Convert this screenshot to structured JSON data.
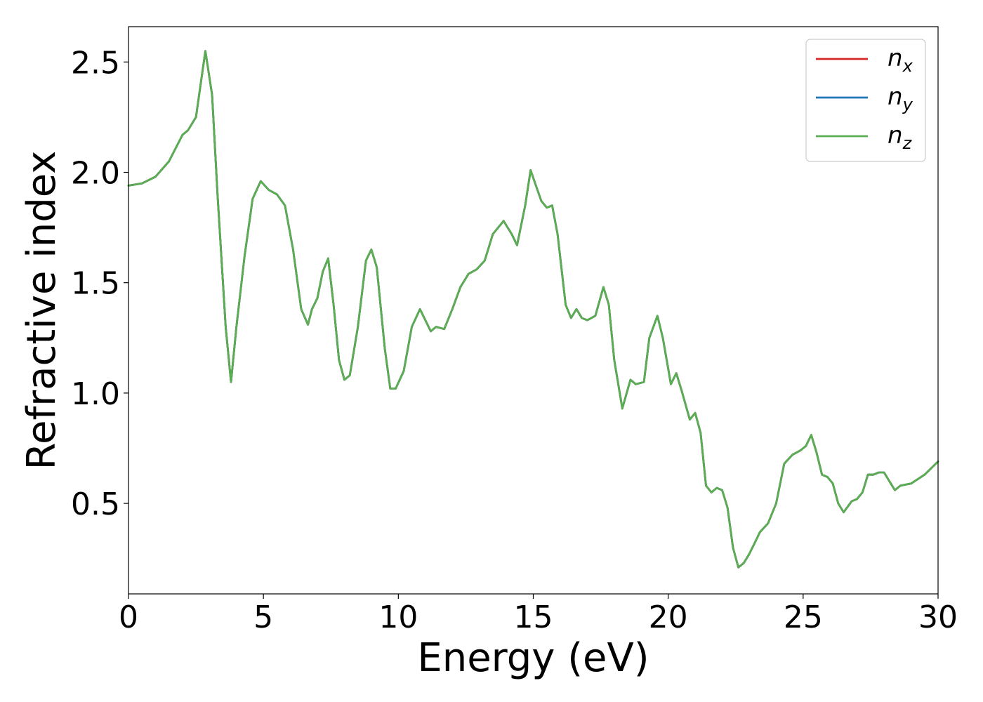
{
  "chart_data": {
    "type": "line",
    "title": "",
    "xlabel": "Energy (eV)",
    "ylabel": "Refractive index",
    "xlim": [
      0,
      30
    ],
    "ylim": [
      0.09,
      2.66
    ],
    "x_ticks": [
      0,
      5,
      10,
      15,
      20,
      25,
      30
    ],
    "x_tick_labels": [
      "0",
      "5",
      "10",
      "15",
      "20",
      "25",
      "30"
    ],
    "y_ticks": [
      0.5,
      1.0,
      1.5,
      2.0,
      2.5
    ],
    "y_tick_labels": [
      "0.5",
      "1.0",
      "1.5",
      "2.0",
      "2.5"
    ],
    "grid": false,
    "legend_position": "top-right",
    "x": [
      0,
      0.5,
      1.0,
      1.5,
      2.0,
      2.2,
      2.5,
      2.85,
      3.1,
      3.3,
      3.6,
      3.8,
      4.0,
      4.3,
      4.6,
      4.9,
      5.2,
      5.5,
      5.8,
      6.1,
      6.4,
      6.65,
      6.8,
      7.0,
      7.2,
      7.4,
      7.6,
      7.8,
      8.0,
      8.2,
      8.5,
      8.8,
      9.0,
      9.2,
      9.5,
      9.7,
      9.9,
      10.2,
      10.5,
      10.8,
      11.0,
      11.2,
      11.4,
      11.7,
      12.0,
      12.3,
      12.6,
      12.9,
      13.2,
      13.5,
      13.9,
      14.2,
      14.4,
      14.7,
      14.9,
      15.1,
      15.3,
      15.5,
      15.7,
      15.9,
      16.2,
      16.4,
      16.6,
      16.8,
      17.0,
      17.3,
      17.6,
      17.8,
      18.0,
      18.3,
      18.6,
      18.8,
      19.1,
      19.3,
      19.6,
      19.8,
      20.1,
      20.3,
      20.5,
      20.8,
      21.0,
      21.2,
      21.4,
      21.6,
      21.8,
      22.0,
      22.2,
      22.4,
      22.6,
      22.8,
      23.0,
      23.2,
      23.4,
      23.7,
      24.0,
      24.3,
      24.6,
      24.9,
      25.1,
      25.3,
      25.5,
      25.7,
      25.9,
      26.1,
      26.3,
      26.5,
      26.8,
      27.0,
      27.2,
      27.4,
      27.6,
      27.8,
      28.0,
      28.2,
      28.4,
      28.6,
      29.0,
      29.5,
      30.0
    ],
    "series": [
      {
        "name": "n_x",
        "color": "#d62728",
        "values": [
          1.94,
          1.95,
          1.98,
          2.05,
          2.17,
          2.19,
          2.25,
          2.55,
          2.35,
          1.9,
          1.3,
          1.05,
          1.3,
          1.62,
          1.88,
          1.96,
          1.92,
          1.9,
          1.85,
          1.65,
          1.38,
          1.31,
          1.38,
          1.43,
          1.55,
          1.61,
          1.4,
          1.15,
          1.06,
          1.08,
          1.3,
          1.6,
          1.65,
          1.57,
          1.2,
          1.02,
          1.02,
          1.1,
          1.3,
          1.38,
          1.33,
          1.28,
          1.3,
          1.29,
          1.38,
          1.48,
          1.54,
          1.56,
          1.6,
          1.72,
          1.78,
          1.72,
          1.67,
          1.85,
          2.01,
          1.94,
          1.87,
          1.84,
          1.85,
          1.72,
          1.4,
          1.34,
          1.38,
          1.34,
          1.33,
          1.35,
          1.48,
          1.4,
          1.15,
          0.93,
          1.06,
          1.04,
          1.05,
          1.25,
          1.35,
          1.25,
          1.04,
          1.09,
          1.01,
          0.88,
          0.91,
          0.82,
          0.58,
          0.55,
          0.57,
          0.56,
          0.48,
          0.3,
          0.21,
          0.23,
          0.27,
          0.32,
          0.37,
          0.41,
          0.5,
          0.68,
          0.72,
          0.74,
          0.76,
          0.81,
          0.73,
          0.63,
          0.62,
          0.59,
          0.5,
          0.46,
          0.51,
          0.52,
          0.55,
          0.63,
          0.63,
          0.64,
          0.64,
          0.6,
          0.56,
          0.58,
          0.59,
          0.63,
          0.69
        ]
      },
      {
        "name": "n_y",
        "color": "#1f77b4",
        "values": [
          1.94,
          1.95,
          1.98,
          2.05,
          2.17,
          2.19,
          2.25,
          2.55,
          2.35,
          1.9,
          1.3,
          1.05,
          1.3,
          1.62,
          1.88,
          1.96,
          1.92,
          1.9,
          1.85,
          1.65,
          1.38,
          1.31,
          1.38,
          1.43,
          1.55,
          1.61,
          1.4,
          1.15,
          1.06,
          1.08,
          1.3,
          1.6,
          1.65,
          1.57,
          1.2,
          1.02,
          1.02,
          1.1,
          1.3,
          1.38,
          1.33,
          1.28,
          1.3,
          1.29,
          1.38,
          1.48,
          1.54,
          1.56,
          1.6,
          1.72,
          1.78,
          1.72,
          1.67,
          1.85,
          2.01,
          1.94,
          1.87,
          1.84,
          1.85,
          1.72,
          1.4,
          1.34,
          1.38,
          1.34,
          1.33,
          1.35,
          1.48,
          1.4,
          1.15,
          0.93,
          1.06,
          1.04,
          1.05,
          1.25,
          1.35,
          1.25,
          1.04,
          1.09,
          1.01,
          0.88,
          0.91,
          0.82,
          0.58,
          0.55,
          0.57,
          0.56,
          0.48,
          0.3,
          0.21,
          0.23,
          0.27,
          0.32,
          0.37,
          0.41,
          0.5,
          0.68,
          0.72,
          0.74,
          0.76,
          0.81,
          0.73,
          0.63,
          0.62,
          0.59,
          0.5,
          0.46,
          0.51,
          0.52,
          0.55,
          0.63,
          0.63,
          0.64,
          0.64,
          0.6,
          0.56,
          0.58,
          0.59,
          0.63,
          0.69
        ]
      },
      {
        "name": "n_z",
        "color": "#5aad51",
        "values": [
          1.94,
          1.95,
          1.98,
          2.05,
          2.17,
          2.19,
          2.25,
          2.55,
          2.35,
          1.9,
          1.3,
          1.05,
          1.3,
          1.62,
          1.88,
          1.96,
          1.92,
          1.9,
          1.85,
          1.65,
          1.38,
          1.31,
          1.38,
          1.43,
          1.55,
          1.61,
          1.4,
          1.15,
          1.06,
          1.08,
          1.3,
          1.6,
          1.65,
          1.57,
          1.2,
          1.02,
          1.02,
          1.1,
          1.3,
          1.38,
          1.33,
          1.28,
          1.3,
          1.29,
          1.38,
          1.48,
          1.54,
          1.56,
          1.6,
          1.72,
          1.78,
          1.72,
          1.67,
          1.85,
          2.01,
          1.94,
          1.87,
          1.84,
          1.85,
          1.72,
          1.4,
          1.34,
          1.38,
          1.34,
          1.33,
          1.35,
          1.48,
          1.4,
          1.15,
          0.93,
          1.06,
          1.04,
          1.05,
          1.25,
          1.35,
          1.25,
          1.04,
          1.09,
          1.01,
          0.88,
          0.91,
          0.82,
          0.58,
          0.55,
          0.57,
          0.56,
          0.48,
          0.3,
          0.21,
          0.23,
          0.27,
          0.32,
          0.37,
          0.41,
          0.5,
          0.68,
          0.72,
          0.74,
          0.76,
          0.81,
          0.73,
          0.63,
          0.62,
          0.59,
          0.5,
          0.46,
          0.51,
          0.52,
          0.55,
          0.63,
          0.63,
          0.64,
          0.64,
          0.6,
          0.56,
          0.58,
          0.59,
          0.63,
          0.69
        ]
      }
    ],
    "legend": [
      {
        "base": "n",
        "sub": "x",
        "color": "#d62728"
      },
      {
        "base": "n",
        "sub": "y",
        "color": "#1f77b4"
      },
      {
        "base": "n",
        "sub": "z",
        "color": "#5aad51"
      }
    ]
  }
}
